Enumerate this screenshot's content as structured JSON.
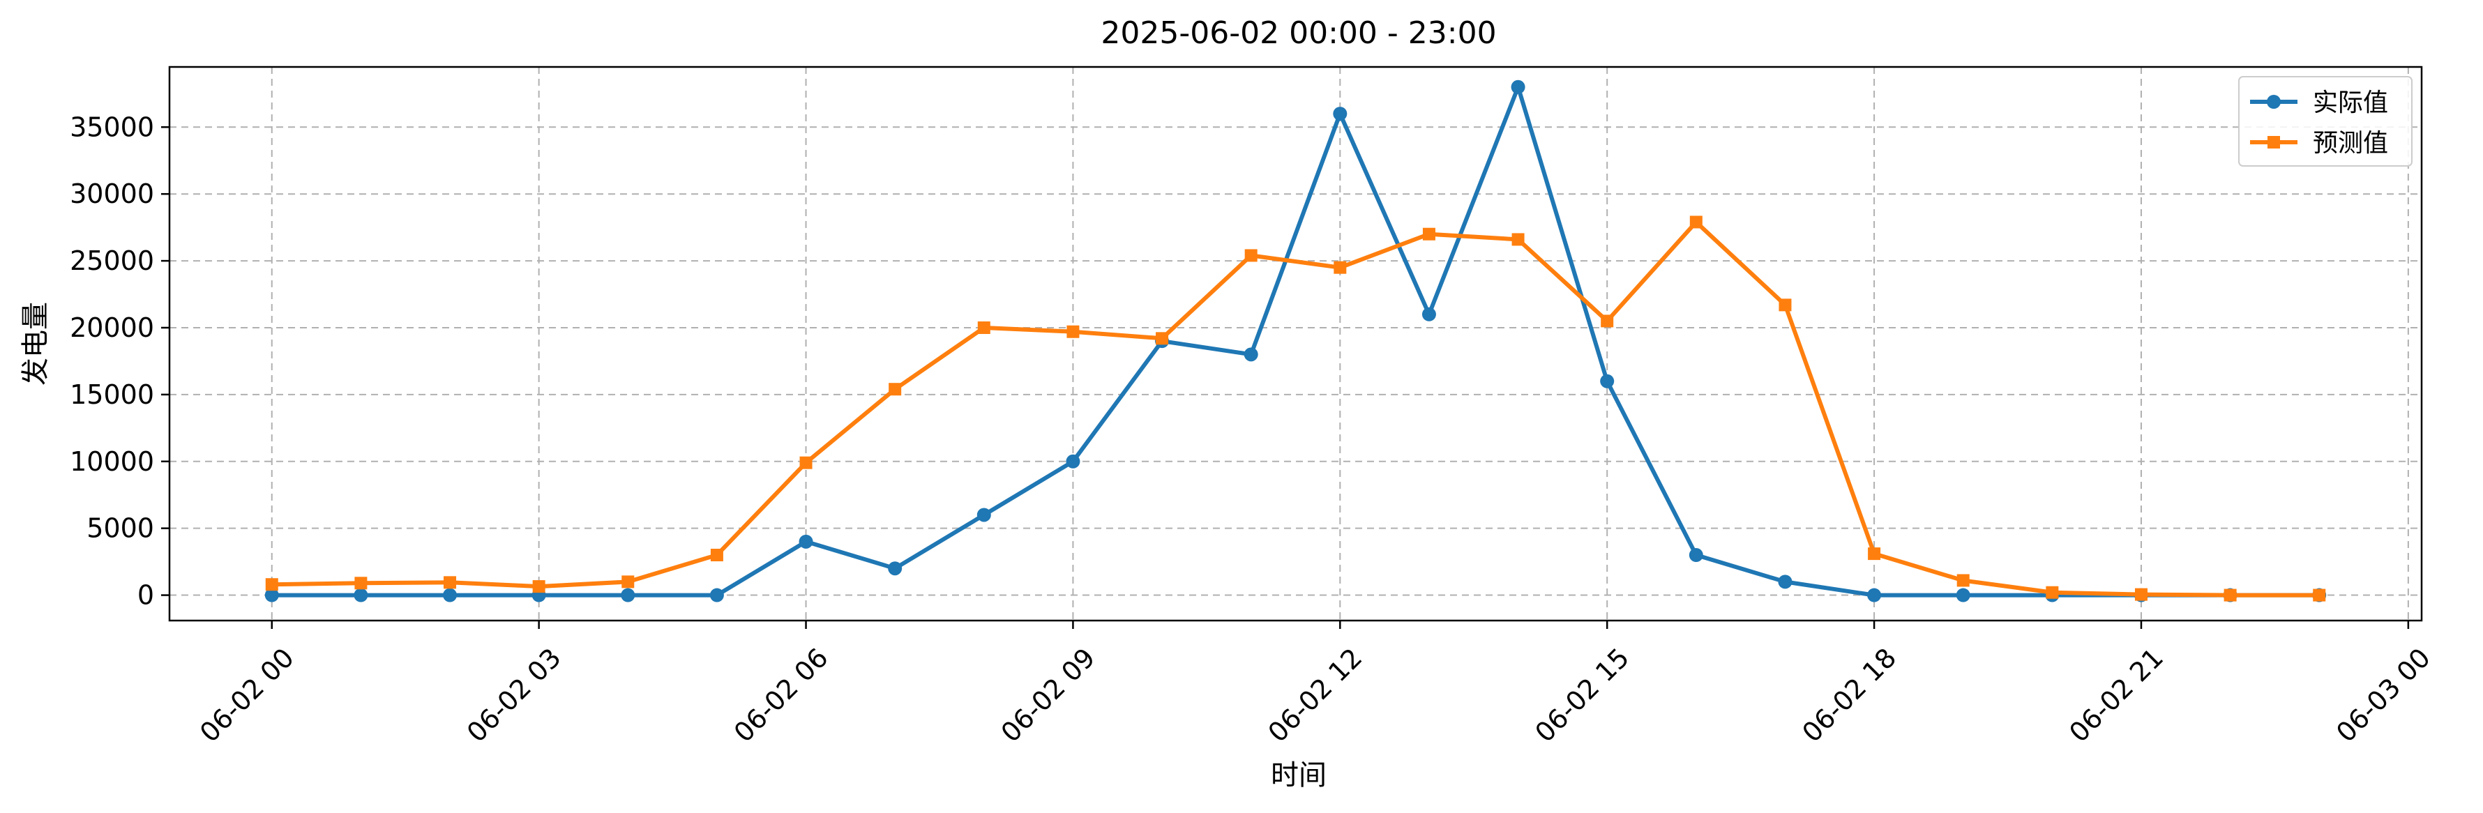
{
  "chart_data": {
    "type": "line",
    "title": "2025-06-02 00:00 - 23:00",
    "xlabel": "时间",
    "ylabel": "发电量",
    "x": [
      "00:00",
      "01:00",
      "02:00",
      "03:00",
      "04:00",
      "05:00",
      "06:00",
      "07:00",
      "08:00",
      "09:00",
      "10:00",
      "11:00",
      "12:00",
      "13:00",
      "14:00",
      "15:00",
      "16:00",
      "17:00",
      "18:00",
      "19:00",
      "20:00",
      "21:00",
      "22:00",
      "23:00"
    ],
    "x_hours": [
      0,
      1,
      2,
      3,
      4,
      5,
      6,
      7,
      8,
      9,
      10,
      11,
      12,
      13,
      14,
      15,
      16,
      17,
      18,
      19,
      20,
      21,
      22,
      23
    ],
    "xlim_hours": [
      -1.15,
      24.15
    ],
    "ylim": [
      -1900,
      39500
    ],
    "xticks": [
      {
        "hour": 0,
        "label": "06-02 00"
      },
      {
        "hour": 3,
        "label": "06-02 03"
      },
      {
        "hour": 6,
        "label": "06-02 06"
      },
      {
        "hour": 9,
        "label": "06-02 09"
      },
      {
        "hour": 12,
        "label": "06-02 12"
      },
      {
        "hour": 15,
        "label": "06-02 15"
      },
      {
        "hour": 18,
        "label": "06-02 18"
      },
      {
        "hour": 21,
        "label": "06-02 21"
      },
      {
        "hour": 24,
        "label": "06-03 00"
      }
    ],
    "yticks": [
      {
        "value": 0,
        "label": "0"
      },
      {
        "value": 5000,
        "label": "5000"
      },
      {
        "value": 10000,
        "label": "10000"
      },
      {
        "value": 15000,
        "label": "15000"
      },
      {
        "value": 20000,
        "label": "20000"
      },
      {
        "value": 25000,
        "label": "25000"
      },
      {
        "value": 30000,
        "label": "30000"
      },
      {
        "value": 35000,
        "label": "35000"
      }
    ],
    "grid": true,
    "legend_position": "top-right",
    "series": [
      {
        "name": "实际值",
        "color": "#1f77b4",
        "marker": "circle",
        "values": [
          0,
          0,
          0,
          0,
          0,
          0,
          4000,
          2000,
          6000,
          10000,
          19000,
          18000,
          36000,
          21000,
          38000,
          16000,
          3000,
          1000,
          0,
          0,
          0,
          0,
          0,
          0
        ]
      },
      {
        "name": "预测值",
        "color": "#ff7f0e",
        "marker": "square",
        "values": [
          800,
          900,
          950,
          650,
          1000,
          3000,
          9900,
          15400,
          20000,
          19700,
          19200,
          25400,
          24500,
          27000,
          26600,
          20500,
          27900,
          21700,
          3100,
          1100,
          200,
          50,
          0,
          0
        ]
      }
    ]
  }
}
